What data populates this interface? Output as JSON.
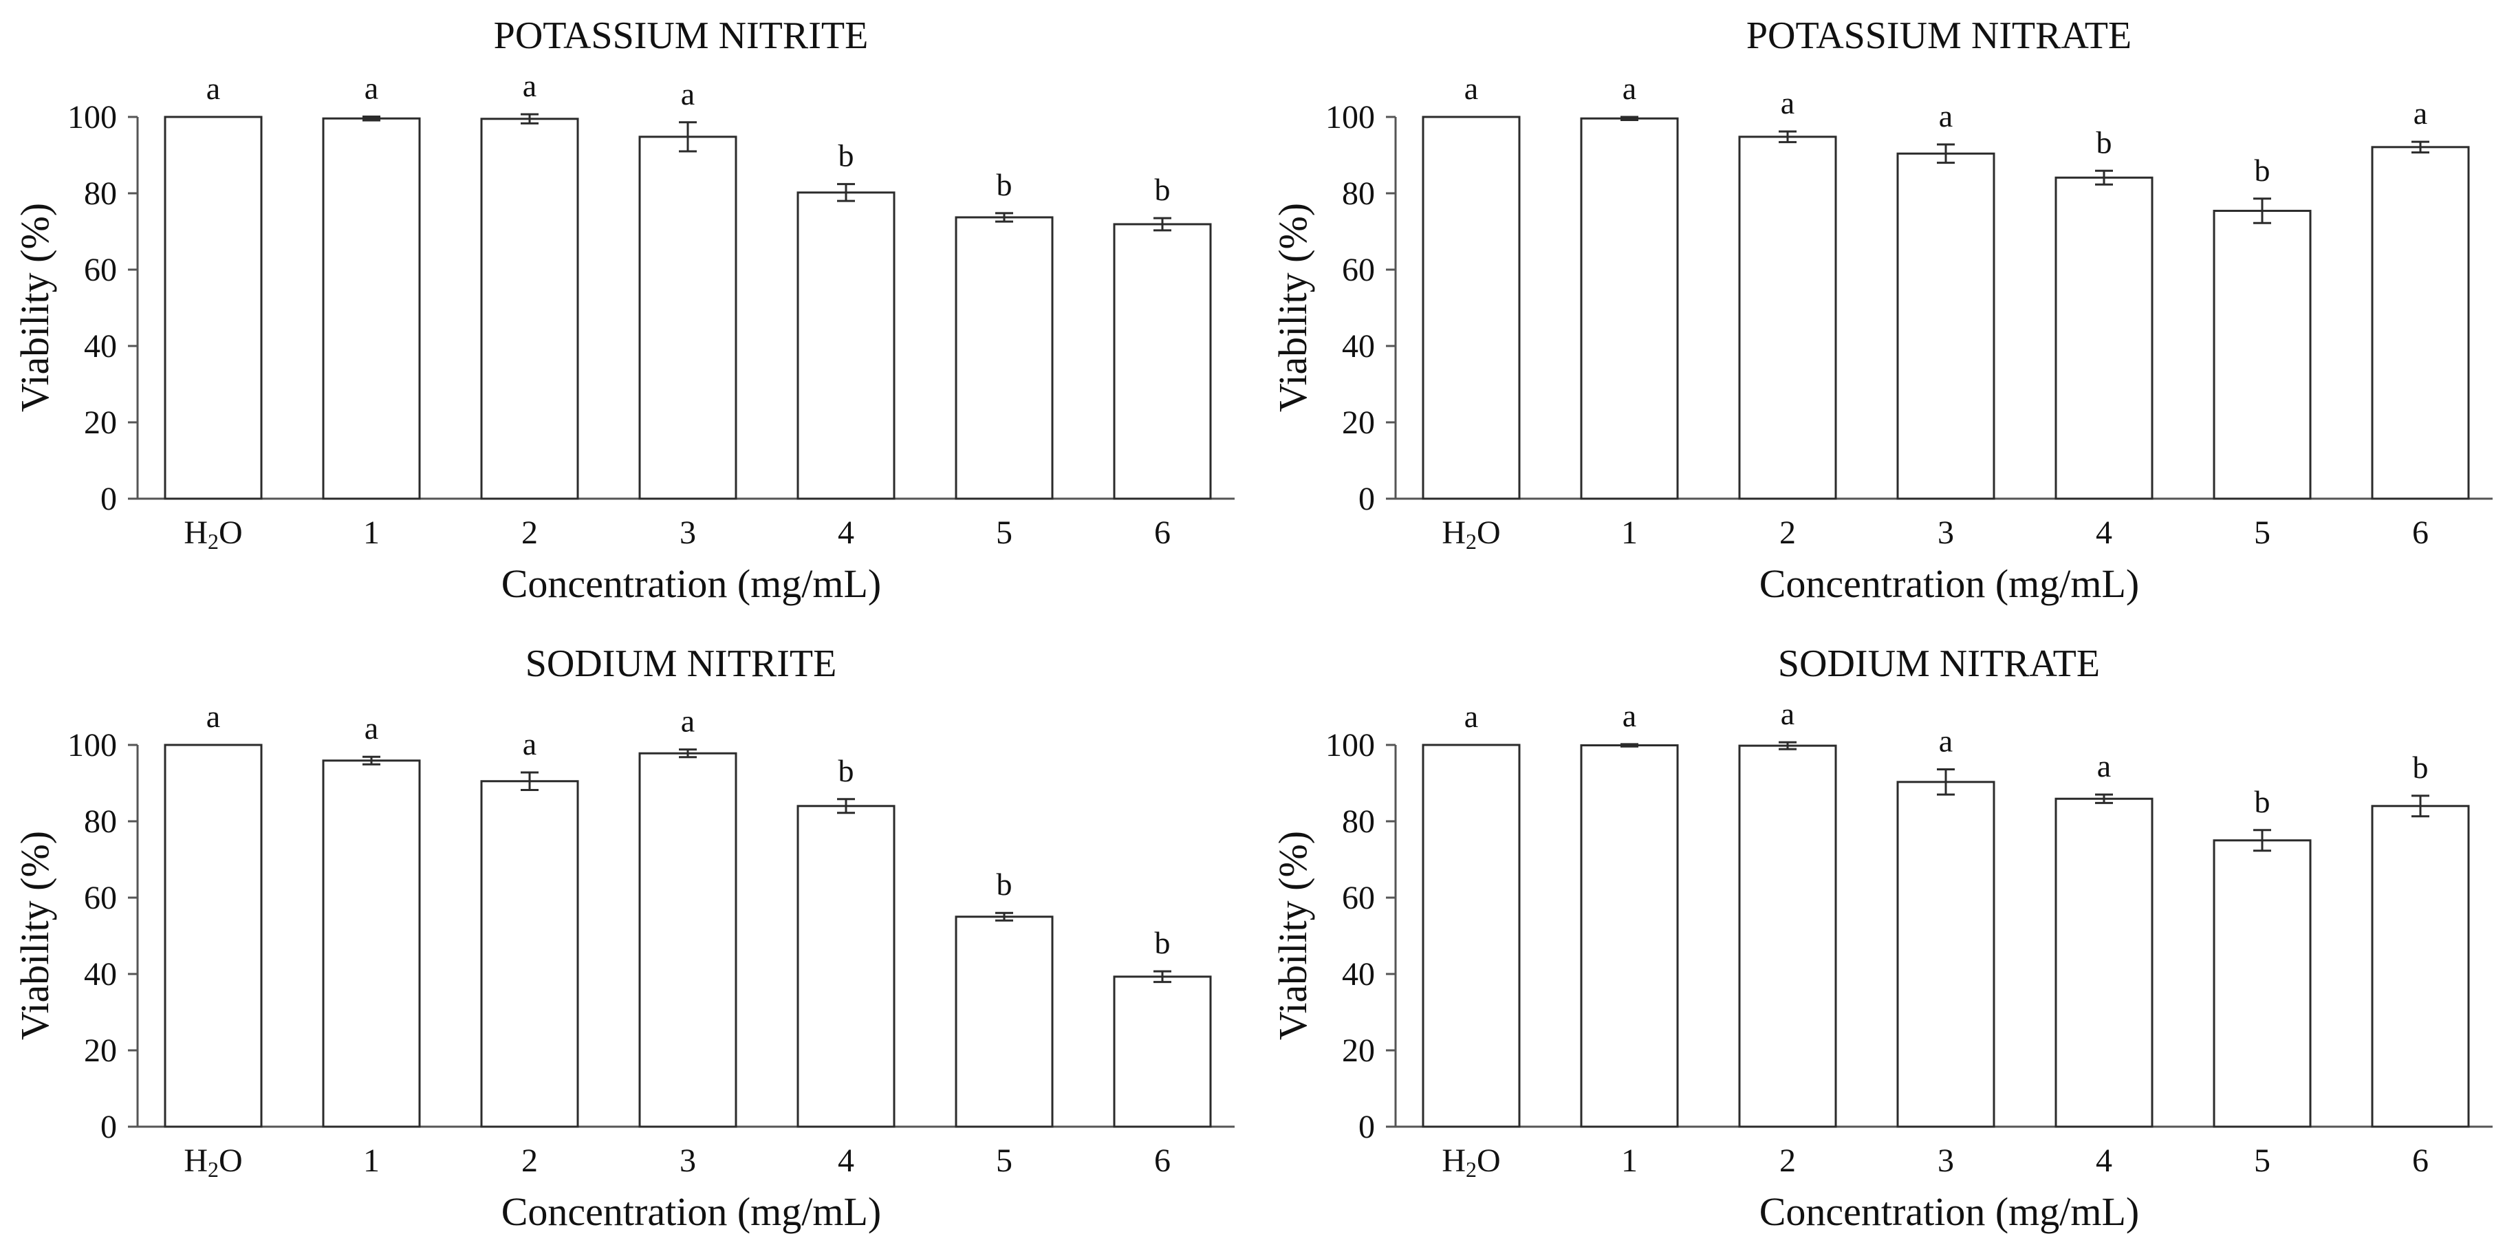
{
  "figure": {
    "colors": {
      "bar_fill": "#ffffff",
      "bar_stroke": "#2b2b2b",
      "axis": "#555555",
      "text": "#111111"
    }
  },
  "chart_data": [
    {
      "type": "bar",
      "title": "POTASSIUM NITRITE",
      "xlabel": "Concentration (mg/mL)",
      "ylabel": "Viability (%)",
      "ylim": [
        0,
        100
      ],
      "yticks": [
        "0",
        "20",
        "40",
        "60",
        "80",
        "100"
      ],
      "categories": [
        "H2O",
        "1",
        "2",
        "3",
        "4",
        "5",
        "6"
      ],
      "values": [
        100,
        99.6,
        99.5,
        94.8,
        80.2,
        73.7,
        71.9
      ],
      "errors": [
        0,
        0.5,
        1.2,
        3.8,
        2.2,
        1.1,
        1.6
      ],
      "letters": [
        "a",
        "a",
        "a",
        "a",
        "b",
        "b",
        "b"
      ]
    },
    {
      "type": "bar",
      "title": "POTASSIUM NITRATE",
      "xlabel": "Concentration (mg/mL)",
      "ylabel": "Viability (%)",
      "ylim": [
        0,
        100
      ],
      "yticks": [
        "0",
        "20",
        "40",
        "60",
        "80",
        "100"
      ],
      "categories": [
        "H2O",
        "1",
        "2",
        "3",
        "4",
        "5",
        "6"
      ],
      "values": [
        100,
        99.6,
        94.8,
        90.4,
        84.1,
        75.4,
        92.1
      ],
      "errors": [
        0,
        0.4,
        1.4,
        2.4,
        1.8,
        3.2,
        1.4
      ],
      "letters": [
        "a",
        "a",
        "a",
        "a",
        "b",
        "b",
        "a"
      ]
    },
    {
      "type": "bar",
      "title": "SODIUM NITRITE",
      "xlabel": "Concentration (mg/mL)",
      "ylabel": "Viability (%)",
      "ylim": [
        0,
        100
      ],
      "yticks": [
        "0",
        "20",
        "40",
        "60",
        "80",
        "100"
      ],
      "categories": [
        "H2O",
        "1",
        "2",
        "3",
        "4",
        "5",
        "6"
      ],
      "values": [
        100,
        95.9,
        90.5,
        97.8,
        84.0,
        55.0,
        39.3
      ],
      "errors": [
        0,
        1.0,
        2.3,
        1.0,
        1.8,
        1.0,
        1.4
      ],
      "letters": [
        "a",
        "a",
        "a",
        "a",
        "b",
        "b",
        "b"
      ]
    },
    {
      "type": "bar",
      "title": "SODIUM NITRATE",
      "xlabel": "Concentration (mg/mL)",
      "ylabel": "Viability (%)",
      "ylim": [
        0,
        100
      ],
      "yticks": [
        "0",
        "20",
        "40",
        "60",
        "80",
        "100"
      ],
      "categories": [
        "H2O",
        "1",
        "2",
        "3",
        "4",
        "5",
        "6"
      ],
      "values": [
        100,
        99.9,
        99.8,
        90.3,
        85.9,
        75.0,
        84.0
      ],
      "errors": [
        0,
        0.3,
        0.9,
        3.3,
        1.1,
        2.7,
        2.7
      ],
      "letters": [
        "a",
        "a",
        "a",
        "a",
        "a",
        "b",
        "b"
      ]
    }
  ]
}
